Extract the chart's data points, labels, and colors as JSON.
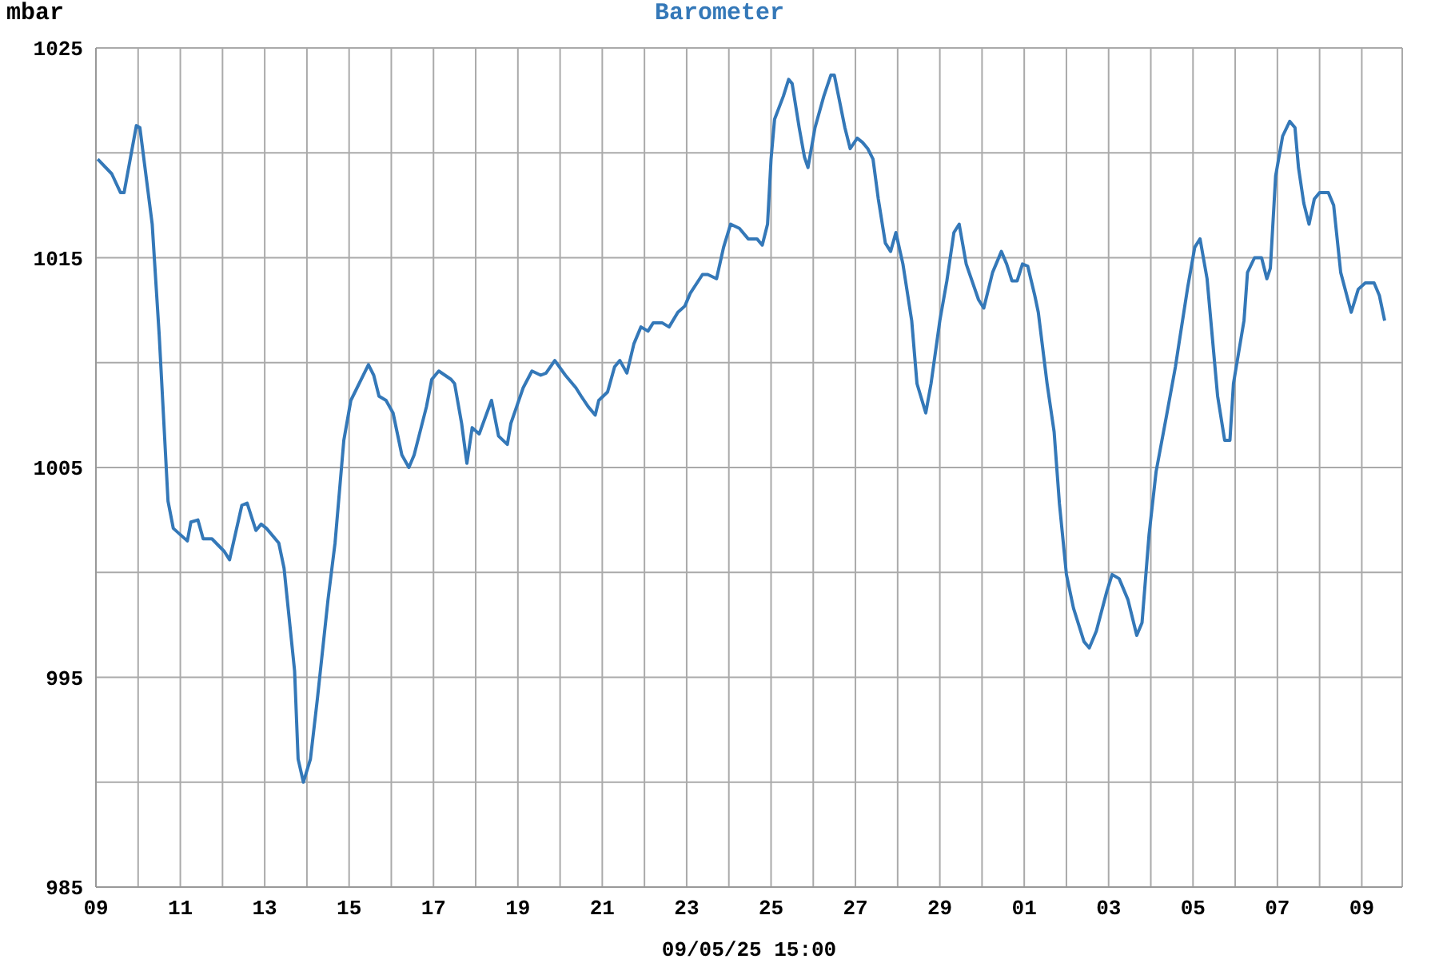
{
  "chart_data": {
    "type": "line",
    "title": "Barometer",
    "ylabel": "mbar",
    "xlabel": "09/05/25 15:00",
    "xlim": [
      "--04-09",
      "--05-09T23:00"
    ],
    "xticks": [
      {
        "value": "--04-09",
        "label": "09"
      },
      {
        "value": "--04-10",
        "label": null
      },
      {
        "value": "--04-11",
        "label": "11"
      },
      {
        "value": "--04-12",
        "label": null
      },
      {
        "value": "--04-13",
        "label": "13"
      },
      {
        "value": "--04-14",
        "label": null
      },
      {
        "value": "--04-15",
        "label": "15"
      },
      {
        "value": "--04-16",
        "label": null
      },
      {
        "value": "--04-17",
        "label": "17"
      },
      {
        "value": "--04-18",
        "label": null
      },
      {
        "value": "--04-19",
        "label": "19"
      },
      {
        "value": "--04-20",
        "label": null
      },
      {
        "value": "--04-21",
        "label": "21"
      },
      {
        "value": "--04-22",
        "label": null
      },
      {
        "value": "--04-23",
        "label": "23"
      },
      {
        "value": "--04-24",
        "label": null
      },
      {
        "value": "--04-25",
        "label": "25"
      },
      {
        "value": "--04-26",
        "label": null
      },
      {
        "value": "--04-27",
        "label": "27"
      },
      {
        "value": "--04-28",
        "label": null
      },
      {
        "value": "--04-29",
        "label": "29"
      },
      {
        "value": "--04-30",
        "label": null
      },
      {
        "value": "--05-01",
        "label": "01"
      },
      {
        "value": "--05-02",
        "label": null
      },
      {
        "value": "--05-03",
        "label": "03"
      },
      {
        "value": "--05-04",
        "label": null
      },
      {
        "value": "--05-05",
        "label": "05"
      },
      {
        "value": "--05-06",
        "label": null
      },
      {
        "value": "--05-07",
        "label": "07"
      },
      {
        "value": "--05-08",
        "label": null
      },
      {
        "value": "--05-09",
        "label": "09"
      }
    ],
    "ylim": [
      985,
      1025
    ],
    "yticks": [
      985,
      {
        "value": 990,
        "label": null
      },
      995,
      {
        "value": 1000,
        "label": null
      },
      1005,
      {
        "value": 1010,
        "label": null
      },
      1015,
      {
        "value": 1020,
        "label": null
      },
      1025
    ],
    "grid": true,
    "series": [
      {
        "color": "#3478b8",
        "x": [
          "--04-09T01:00",
          "--04-09T09:00",
          "--04-09T14:00",
          "--04-09T16:00",
          "--04-09T23:00",
          "--04-10T01:00",
          "--04-10T08:00",
          "--04-10T12:00",
          "--04-10T17:00",
          "--04-10T20:00",
          "--04-11T04:00",
          "--04-11T06:00",
          "--04-11T10:00",
          "--04-11T13:00",
          "--04-11T18:00",
          "--04-12T01:00",
          "--04-12T04:00",
          "--04-12T11:00",
          "--04-12T14:00",
          "--04-12T19:00",
          "--04-12T22:00",
          "--04-13T01:00",
          "--04-13T08:00",
          "--04-13T11:00",
          "--04-13T17:00",
          "--04-13T19:00",
          "--04-13T22:00",
          "--04-14T02:00",
          "--04-14T06:00",
          "--04-14T12:00",
          "--04-14T16:00",
          "--04-14T21:00",
          "--04-15T01:00",
          "--04-15T11:00",
          "--04-15T14:00",
          "--04-15T17:00",
          "--04-15T21:00",
          "--04-16T01:00",
          "--04-16T06:00",
          "--04-16T10:00",
          "--04-16T13:00",
          "--04-16T20:00",
          "--04-16T23:00",
          "--04-17T03:00",
          "--04-17T10:00",
          "--04-17T12:00",
          "--04-17T16:00",
          "--04-17T19:00",
          "--04-17T22:00",
          "--04-18T02:00",
          "--04-18T09:00",
          "--04-18T13:00",
          "--04-18T18:00",
          "--04-18T20:00",
          "--04-19T03:00",
          "--04-19T08:00",
          "--04-19T13:00",
          "--04-19T16:00",
          "--04-19T21:00",
          "--04-20T03:00",
          "--04-20T09:00",
          "--04-20T12:00",
          "--04-20T16:00",
          "--04-20T20:00",
          "--04-20T22:00",
          "--04-21T03:00",
          "--04-21T07:00",
          "--04-21T10:00",
          "--04-21T14:00",
          "--04-21T18:00",
          "--04-21T22:00",
          "--04-22T02:00",
          "--04-22T05:00",
          "--04-22T10:00",
          "--04-22T14:00",
          "--04-22T19:00",
          "--04-22T23:00",
          "--04-23T02:00",
          "--04-23T09:00",
          "--04-23T12:00",
          "--04-23T17:00",
          "--04-23T21:00",
          "--04-24T01:00",
          "--04-24T06:00",
          "--04-24T11:00",
          "--04-24T16:00",
          "--04-24T19:00",
          "--04-24T22:00",
          "--04-25T00:00",
          "--04-25T02:00",
          "--04-25T07:00",
          "--04-25T10:00",
          "--04-25T12:00",
          "--04-25T16:00",
          "--04-25T19:00",
          "--04-25T21:00",
          "--04-26T01:00",
          "--04-26T06:00",
          "--04-26T10:00",
          "--04-26T12:00",
          "--04-26T18:00",
          "--04-26T21:00",
          "--04-27T01:00",
          "--04-27T04:00",
          "--04-27T07:00",
          "--04-27T10:00",
          "--04-27T13:00",
          "--04-27T17:00",
          "--04-27T20:00",
          "--04-27T23:00",
          "--04-28T03:00",
          "--04-28T08:00",
          "--04-28T11:00",
          "--04-28T16:00",
          "--04-28T19:00",
          "--04-29T00:00",
          "--04-29T04:00",
          "--04-29T08:00",
          "--04-29T11:00",
          "--04-29T15:00",
          "--04-29T22:00",
          "--04-30T01:00",
          "--04-30T06:00",
          "--04-30T11:00",
          "--04-30T14:00",
          "--04-30T17:00",
          "--04-30T20:00",
          "--04-30T23:00",
          "--05-01T02:00",
          "--05-01T06:00",
          "--05-01T08:00",
          "--05-01T13:00",
          "--05-01T17:00",
          "--05-01T20:00",
          "--05-02T00:00",
          "--05-02T04:00",
          "--05-02T10:00",
          "--05-02T13:00",
          "--05-02T17:00",
          "--05-02T23:00",
          "--05-03T02:00",
          "--05-03T06:00",
          "--05-03T11:00",
          "--05-03T16:00",
          "--05-03T19:00",
          "--05-03T23:00",
          "--05-04T03:00",
          "--05-04T09:00",
          "--05-04T14:00",
          "--05-04T16:00",
          "--05-04T21:00",
          "--05-05T01:00",
          "--05-05T04:00",
          "--05-05T08:00",
          "--05-05T14:00",
          "--05-05T18:00",
          "--05-05T21:00",
          "--05-05T23:00",
          "--05-06T05:00",
          "--05-06T07:00",
          "--05-06T11:00",
          "--05-06T15:00",
          "--05-06T18:00",
          "--05-06T20:00",
          "--05-06T23:00",
          "--05-07T03:00",
          "--05-07T07:00",
          "--05-07T10:00",
          "--05-07T12:00",
          "--05-07T15:00",
          "--05-07T18:00",
          "--05-07T21:00",
          "--05-08T00:00",
          "--05-08T05:00",
          "--05-08T08:00",
          "--05-08T12:00",
          "--05-08T18:00",
          "--05-08T22:00",
          "--05-09T02:00",
          "--05-09T07:00",
          "--05-09T10:00",
          "--05-09T13:00"
        ],
        "values": [
          1019.7,
          1019.0,
          1018.1,
          1018.1,
          1021.3,
          1021.2,
          1016.6,
          1011.3,
          1003.4,
          1002.1,
          1001.5,
          1002.4,
          1002.5,
          1001.6,
          1001.6,
          1001.0,
          1000.6,
          1003.2,
          1003.3,
          1002.0,
          1002.3,
          1002.1,
          1001.4,
          1000.2,
          995.3,
          991.1,
          990.0,
          991.1,
          994.0,
          998.7,
          1001.4,
          1006.3,
          1008.2,
          1009.9,
          1009.4,
          1008.4,
          1008.2,
          1007.6,
          1005.6,
          1005.0,
          1005.6,
          1007.9,
          1009.2,
          1009.6,
          1009.2,
          1009.0,
          1007.1,
          1005.2,
          1006.9,
          1006.6,
          1008.2,
          1006.5,
          1006.1,
          1007.1,
          1008.8,
          1009.6,
          1009.4,
          1009.5,
          1010.1,
          1009.4,
          1008.8,
          1008.4,
          1007.9,
          1007.5,
          1008.2,
          1008.6,
          1009.8,
          1010.1,
          1009.5,
          1010.9,
          1011.7,
          1011.5,
          1011.9,
          1011.9,
          1011.7,
          1012.4,
          1012.7,
          1013.3,
          1014.2,
          1014.2,
          1014.0,
          1015.5,
          1016.6,
          1016.4,
          1015.9,
          1015.9,
          1015.6,
          1016.6,
          1019.7,
          1021.6,
          1022.7,
          1023.5,
          1023.3,
          1021.2,
          1019.8,
          1019.3,
          1021.2,
          1022.7,
          1023.7,
          1023.7,
          1021.2,
          1020.2,
          1020.7,
          1020.5,
          1020.2,
          1019.7,
          1017.8,
          1015.7,
          1015.3,
          1016.2,
          1014.7,
          1012.0,
          1009.0,
          1007.6,
          1009.0,
          1012.0,
          1013.9,
          1016.2,
          1016.6,
          1014.7,
          1013.0,
          1012.6,
          1014.3,
          1015.3,
          1014.7,
          1013.9,
          1013.9,
          1014.7,
          1014.6,
          1013.2,
          1012.4,
          1009.0,
          1006.7,
          1003.3,
          999.9,
          998.3,
          996.7,
          996.4,
          997.2,
          999.1,
          999.9,
          999.7,
          998.7,
          997.0,
          997.6,
          1001.8,
          1004.8,
          1007.5,
          1009.8,
          1010.9,
          1013.6,
          1015.5,
          1015.9,
          1014.0,
          1008.4,
          1006.3,
          1006.3,
          1009.0,
          1012.0,
          1014.3,
          1015.0,
          1015.0,
          1014.0,
          1014.5,
          1018.9,
          1020.8,
          1021.5,
          1021.2,
          1019.3,
          1017.6,
          1016.6,
          1017.8,
          1018.1,
          1018.1,
          1017.5,
          1014.3,
          1012.4,
          1013.5,
          1013.8,
          1013.8,
          1013.2,
          1012.0
        ]
      }
    ]
  }
}
